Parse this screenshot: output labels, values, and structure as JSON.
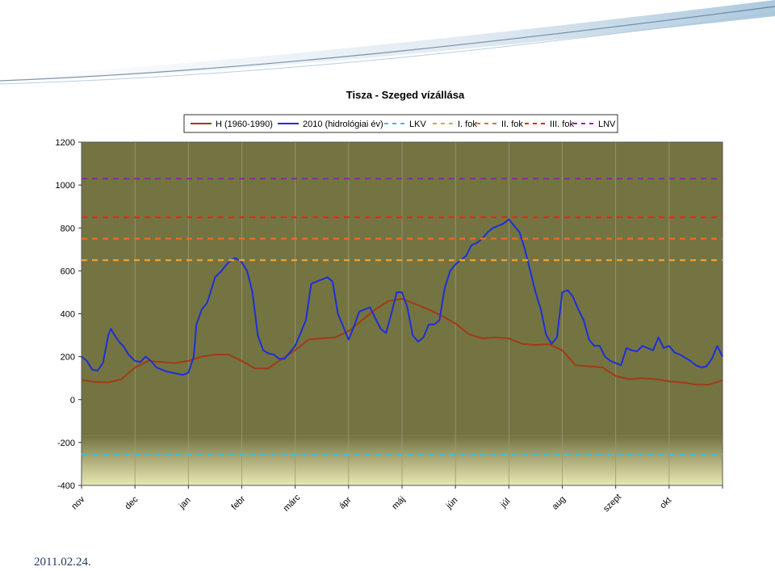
{
  "footer_date": "2011.02.24.",
  "colors": {
    "plot_bg": "#747443",
    "plot_bottom_band": "#e9e9b4",
    "grid": "#9a9a78"
  },
  "chart_data": {
    "type": "line",
    "title": "Tisza - Szeged vízállása",
    "ylim": [
      -400,
      1200
    ],
    "yticks": [
      1200,
      1000,
      800,
      600,
      400,
      200,
      0,
      -200,
      -400
    ],
    "xlim": [
      0,
      12
    ],
    "months": [
      "nov",
      "dec",
      "jan",
      "febr",
      "márc",
      "ápr",
      "máj",
      "jún",
      "júl",
      "aug",
      "szept",
      "okt"
    ],
    "legend_position": "top",
    "grid": true,
    "series": [
      {
        "name": "H (1960-1990)",
        "color": "#a03c14",
        "style": "solid",
        "x": [
          0,
          0.25,
          0.5,
          0.75,
          1.0,
          1.25,
          1.5,
          1.75,
          2.0,
          2.25,
          2.5,
          2.75,
          3.0,
          3.25,
          3.5,
          3.75,
          4.0,
          4.25,
          4.5,
          4.75,
          5.0,
          5.25,
          5.5,
          5.75,
          6.0,
          6.25,
          6.5,
          6.75,
          7.0,
          7.25,
          7.5,
          7.75,
          8.0,
          8.25,
          8.5,
          8.75,
          9.0,
          9.25,
          9.5,
          9.75,
          10.0,
          10.25,
          10.5,
          10.75,
          11.0,
          11.25,
          11.5,
          11.75,
          12.0
        ],
        "values": [
          92,
          82,
          80,
          95,
          150,
          180,
          175,
          170,
          180,
          200,
          210,
          210,
          180,
          145,
          145,
          190,
          230,
          280,
          285,
          290,
          320,
          370,
          420,
          460,
          470,
          445,
          420,
          390,
          355,
          305,
          285,
          290,
          285,
          260,
          255,
          258,
          230,
          160,
          155,
          150,
          110,
          95,
          100,
          95,
          85,
          80,
          70,
          70,
          90
        ]
      },
      {
        "name": "2010 (hidrológiai év)",
        "color": "#1c2fd8",
        "style": "solid",
        "x": [
          0,
          0.1,
          0.2,
          0.3,
          0.4,
          0.5,
          0.55,
          0.62,
          0.7,
          0.78,
          0.88,
          1.0,
          1.1,
          1.2,
          1.3,
          1.4,
          1.5,
          1.6,
          1.7,
          1.8,
          1.9,
          2.0,
          2.1,
          2.15,
          2.25,
          2.35,
          2.5,
          2.62,
          2.75,
          2.87,
          2.95,
          3.0,
          3.1,
          3.2,
          3.3,
          3.4,
          3.5,
          3.6,
          3.7,
          3.8,
          3.9,
          4.0,
          4.1,
          4.2,
          4.3,
          4.4,
          4.5,
          4.6,
          4.7,
          4.8,
          4.9,
          5.0,
          5.1,
          5.2,
          5.3,
          5.4,
          5.5,
          5.6,
          5.7,
          5.8,
          5.9,
          6.0,
          6.1,
          6.2,
          6.3,
          6.4,
          6.5,
          6.6,
          6.7,
          6.8,
          6.9,
          7.0,
          7.1,
          7.2,
          7.3,
          7.4,
          7.5,
          7.6,
          7.7,
          7.8,
          7.9,
          8.0,
          8.1,
          8.2,
          8.3,
          8.4,
          8.5,
          8.6,
          8.7,
          8.8,
          8.9,
          9.0,
          9.1,
          9.2,
          9.3,
          9.4,
          9.5,
          9.6,
          9.7,
          9.8,
          9.9,
          10.0,
          10.1,
          10.2,
          10.3,
          10.4,
          10.5,
          10.6,
          10.7,
          10.8,
          10.9,
          11.0,
          11.1,
          11.2,
          11.3,
          11.4,
          11.5,
          11.6,
          11.7,
          11.8,
          11.9,
          12.0
        ],
        "values": [
          200,
          180,
          140,
          135,
          170,
          300,
          330,
          300,
          270,
          250,
          210,
          180,
          175,
          200,
          180,
          150,
          140,
          130,
          125,
          120,
          115,
          125,
          200,
          350,
          420,
          450,
          570,
          600,
          640,
          660,
          650,
          640,
          600,
          500,
          300,
          230,
          215,
          210,
          190,
          190,
          220,
          250,
          310,
          370,
          540,
          550,
          560,
          570,
          550,
          400,
          340,
          280,
          340,
          410,
          420,
          430,
          380,
          330,
          310,
          400,
          500,
          500,
          430,
          300,
          270,
          290,
          350,
          350,
          370,
          520,
          600,
          630,
          650,
          670,
          720,
          730,
          750,
          780,
          800,
          810,
          820,
          840,
          810,
          780,
          700,
          600,
          500,
          420,
          300,
          260,
          290,
          500,
          510,
          480,
          420,
          370,
          280,
          250,
          250,
          200,
          180,
          170,
          160,
          240,
          230,
          225,
          250,
          240,
          230,
          290,
          240,
          250,
          220,
          210,
          195,
          180,
          160,
          150,
          155,
          190,
          250,
          200
        ]
      },
      {
        "name": "LKV",
        "color": "#33c3d9",
        "style": "dashed",
        "x": [
          0,
          12
        ],
        "values": [
          -255,
          -255
        ]
      },
      {
        "name": "I. fok",
        "color": "#f0a030",
        "style": "dashed",
        "x": [
          0,
          12
        ],
        "values": [
          650,
          650
        ]
      },
      {
        "name": "II. fok",
        "color": "#f06a1e",
        "style": "dashed",
        "x": [
          0,
          12
        ],
        "values": [
          750,
          750
        ]
      },
      {
        "name": "III. fok",
        "color": "#e8261e",
        "style": "dashed",
        "x": [
          0,
          12
        ],
        "values": [
          850,
          850
        ]
      },
      {
        "name": "LNV",
        "color": "#8a2aa0",
        "style": "dashed",
        "x": [
          0,
          12
        ],
        "values": [
          1030,
          1030
        ]
      }
    ]
  }
}
